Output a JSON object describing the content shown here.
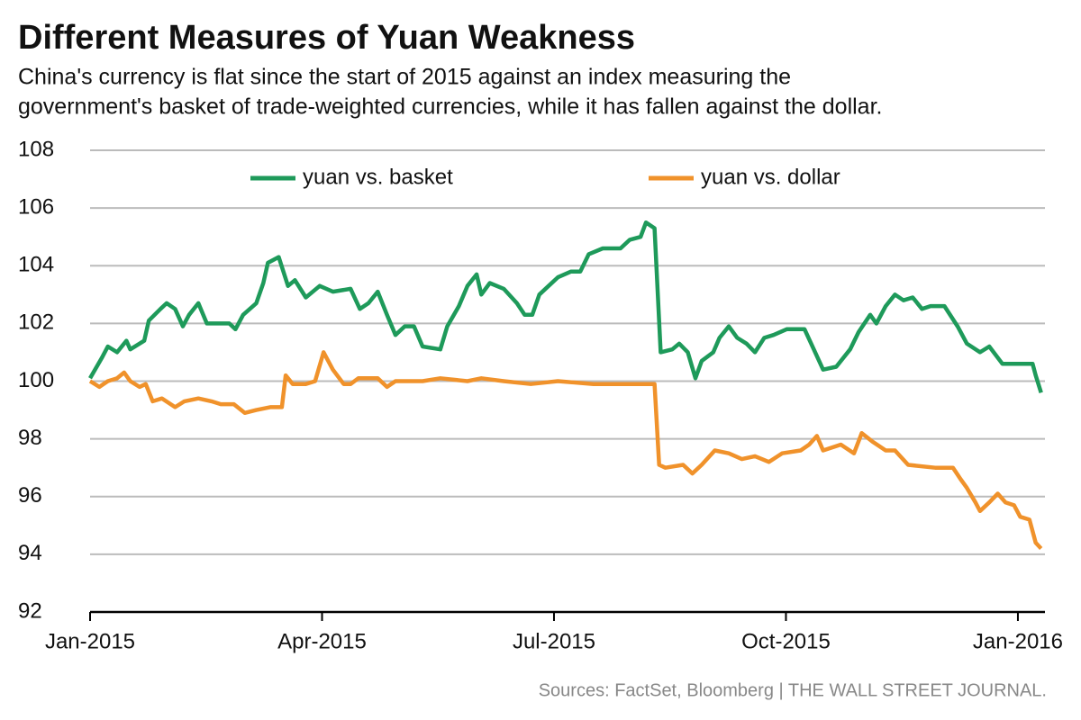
{
  "chart_data": {
    "type": "line",
    "title": "Different Measures of Yuan Weakness",
    "subtitle": [
      "China's currency is flat since the start of 2015 against an index measuring the",
      "government's basket of trade-weighted currencies, while it has fallen against the dollar."
    ],
    "source": "Sources: FactSet, Bloomberg  |  THE WALL STREET JOURNAL.",
    "xlim": [
      0,
      12.35
    ],
    "xticks": [
      {
        "value": 0,
        "label": "Jan-2015"
      },
      {
        "value": 3,
        "label": "Apr-2015"
      },
      {
        "value": 6,
        "label": "Jul-2015"
      },
      {
        "value": 9,
        "label": "Oct-2015"
      },
      {
        "value": 12,
        "label": "Jan-2016"
      }
    ],
    "ylim": [
      92,
      108
    ],
    "yticks": [
      92,
      94,
      96,
      98,
      100,
      102,
      104,
      106,
      108
    ],
    "grid": true,
    "legend": "top",
    "series": [
      {
        "name": "yuan vs. basket",
        "color": "#1e9a5a",
        "x": [
          0,
          0.15,
          0.23,
          0.35,
          0.47,
          0.52,
          0.7,
          0.76,
          0.91,
          0.99,
          1.1,
          1.2,
          1.28,
          1.4,
          1.51,
          1.8,
          1.88,
          1.98,
          2.15,
          2.24,
          2.3,
          2.44,
          2.56,
          2.65,
          2.79,
          2.97,
          3.14,
          3.37,
          3.49,
          3.6,
          3.72,
          3.84,
          3.95,
          4.07,
          4.19,
          4.3,
          4.53,
          4.62,
          4.77,
          4.88,
          5.0,
          5.06,
          5.17,
          5.35,
          5.52,
          5.62,
          5.72,
          5.81,
          5.93,
          6.05,
          6.22,
          6.34,
          6.45,
          6.63,
          6.86,
          6.98,
          7.12,
          7.19,
          7.3,
          7.38,
          7.53,
          7.62,
          7.73,
          7.83,
          7.91,
          8.06,
          8.14,
          8.26,
          8.37,
          8.49,
          8.6,
          8.72,
          8.84,
          9.01,
          9.24,
          9.36,
          9.48,
          9.65,
          9.83,
          9.94,
          10.09,
          10.17,
          10.29,
          10.41,
          10.52,
          10.64,
          10.76,
          10.87,
          11.05,
          11.22,
          11.34,
          11.51,
          11.63,
          11.8,
          11.98,
          12.09,
          12.19,
          12.23,
          12.3
        ],
        "values": [
          100.1,
          100.8,
          101.2,
          101.0,
          101.4,
          101.1,
          101.4,
          102.1,
          102.5,
          102.7,
          102.5,
          101.9,
          102.3,
          102.7,
          102.0,
          102.0,
          101.8,
          102.3,
          102.7,
          103.4,
          104.1,
          104.3,
          103.3,
          103.5,
          102.9,
          103.3,
          103.1,
          103.2,
          102.5,
          102.7,
          103.1,
          102.3,
          101.6,
          101.9,
          101.9,
          101.2,
          101.1,
          101.9,
          102.6,
          103.3,
          103.7,
          103.0,
          103.4,
          103.2,
          102.7,
          102.3,
          102.3,
          103.0,
          103.3,
          103.6,
          103.8,
          103.8,
          104.4,
          104.6,
          104.6,
          104.9,
          105.0,
          105.5,
          105.3,
          101.0,
          101.1,
          101.3,
          101.0,
          100.1,
          100.7,
          101.0,
          101.5,
          101.9,
          101.5,
          101.3,
          101.0,
          101.5,
          101.6,
          101.8,
          101.8,
          101.1,
          100.4,
          100.5,
          101.1,
          101.7,
          102.3,
          102.0,
          102.6,
          103.0,
          102.8,
          102.9,
          102.5,
          102.6,
          102.6,
          101.9,
          101.3,
          101.0,
          101.2,
          100.6,
          100.6,
          100.6,
          100.6,
          100.2,
          99.6
        ]
      },
      {
        "name": "yuan vs. dollar",
        "color": "#f0922b",
        "x": [
          0,
          0.12,
          0.23,
          0.35,
          0.44,
          0.52,
          0.64,
          0.72,
          0.81,
          0.93,
          1.1,
          1.22,
          1.4,
          1.57,
          1.69,
          1.86,
          2.0,
          2.15,
          2.33,
          2.48,
          2.53,
          2.62,
          2.79,
          2.91,
          3.02,
          3.14,
          3.28,
          3.37,
          3.47,
          3.72,
          3.84,
          3.95,
          4.3,
          4.53,
          4.88,
          5.06,
          5.35,
          5.7,
          6.05,
          6.51,
          6.98,
          7.3,
          7.36,
          7.44,
          7.67,
          7.79,
          7.91,
          8.08,
          8.26,
          8.43,
          8.6,
          8.78,
          8.95,
          9.19,
          9.3,
          9.4,
          9.48,
          9.71,
          9.88,
          9.98,
          10.12,
          10.29,
          10.41,
          10.58,
          10.93,
          11.16,
          11.26,
          11.34,
          11.45,
          11.51,
          11.63,
          11.74,
          11.84,
          11.95,
          12.03,
          12.15,
          12.23,
          12.3
        ],
        "values": [
          100.0,
          99.8,
          100.0,
          100.1,
          100.3,
          100.0,
          99.8,
          99.9,
          99.3,
          99.4,
          99.1,
          99.3,
          99.4,
          99.3,
          99.2,
          99.2,
          98.9,
          99.0,
          99.1,
          99.1,
          100.2,
          99.9,
          99.9,
          100.0,
          101.0,
          100.4,
          99.9,
          99.9,
          100.1,
          100.1,
          99.8,
          100.0,
          100.0,
          100.1,
          100.0,
          100.1,
          100.0,
          99.9,
          100.0,
          99.9,
          99.9,
          99.9,
          97.1,
          97.0,
          97.1,
          96.8,
          97.1,
          97.6,
          97.5,
          97.3,
          97.4,
          97.2,
          97.5,
          97.6,
          97.8,
          98.1,
          97.6,
          97.8,
          97.5,
          98.2,
          97.9,
          97.6,
          97.6,
          97.1,
          97.0,
          97.0,
          96.6,
          96.3,
          95.8,
          95.5,
          95.8,
          96.1,
          95.8,
          95.7,
          95.3,
          95.2,
          94.4,
          94.2
        ]
      }
    ]
  }
}
